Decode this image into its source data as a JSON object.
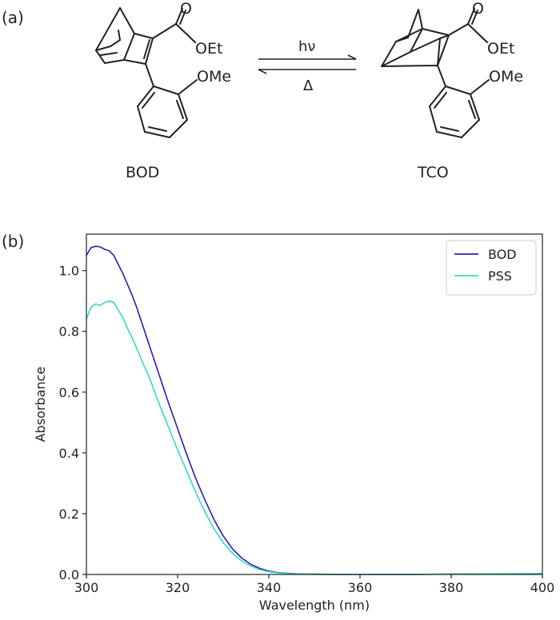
{
  "panel_a": {
    "label": "(a)",
    "reactant": {
      "name": "BOD",
      "groups": {
        "ester_o": "O",
        "ester": "OEt",
        "ome": "OMe"
      }
    },
    "product": {
      "name": "TCO",
      "groups": {
        "ester_o": "O",
        "ester": "OEt",
        "ome": "OMe"
      }
    },
    "arrow_forward_label": "hν",
    "arrow_reverse_label": "Δ"
  },
  "panel_b": {
    "label": "(b)"
  },
  "chart_data": {
    "type": "line",
    "title": "",
    "xlabel": "Wavelength (nm)",
    "ylabel": "Absorbance",
    "xlim": [
      300,
      400
    ],
    "ylim": [
      0,
      1.12
    ],
    "xticks": [
      300,
      320,
      340,
      360,
      380,
      400
    ],
    "yticks": [
      0.0,
      0.2,
      0.4,
      0.6,
      0.8,
      1.0
    ],
    "ytick_labels": [
      "0.0",
      "0.2",
      "0.4",
      "0.6",
      "0.8",
      "1.0"
    ],
    "grid": false,
    "legend_position": "top-right",
    "x": [
      300,
      301,
      302,
      303,
      304,
      305,
      306,
      307,
      308,
      309,
      310,
      311,
      312,
      313,
      314,
      315,
      316,
      318,
      320,
      322,
      324,
      326,
      328,
      330,
      332,
      334,
      336,
      338,
      340,
      342,
      344,
      346,
      348,
      350,
      355,
      360,
      370,
      380,
      390,
      400
    ],
    "series": [
      {
        "name": "BOD",
        "color": "#2b1fa6",
        "values": [
          1.05,
          1.075,
          1.08,
          1.078,
          1.07,
          1.065,
          1.05,
          1.02,
          0.99,
          0.955,
          0.92,
          0.88,
          0.835,
          0.79,
          0.745,
          0.7,
          0.655,
          0.565,
          0.48,
          0.395,
          0.315,
          0.245,
          0.18,
          0.127,
          0.085,
          0.055,
          0.034,
          0.02,
          0.011,
          0.006,
          0.004,
          0.002,
          0.001,
          0.001,
          0.0,
          0.0,
          0.0,
          0.001,
          0.002,
          0.003
        ]
      },
      {
        "name": "PSS",
        "color": "#34d9c3",
        "values": [
          0.84,
          0.88,
          0.89,
          0.885,
          0.895,
          0.9,
          0.895,
          0.87,
          0.845,
          0.81,
          0.78,
          0.745,
          0.71,
          0.675,
          0.64,
          0.6,
          0.56,
          0.485,
          0.41,
          0.34,
          0.27,
          0.205,
          0.15,
          0.105,
          0.07,
          0.045,
          0.028,
          0.016,
          0.009,
          0.005,
          0.003,
          0.001,
          0.001,
          0.0,
          0.0,
          0.0,
          0.0,
          0.001,
          0.002,
          0.003
        ]
      }
    ]
  }
}
